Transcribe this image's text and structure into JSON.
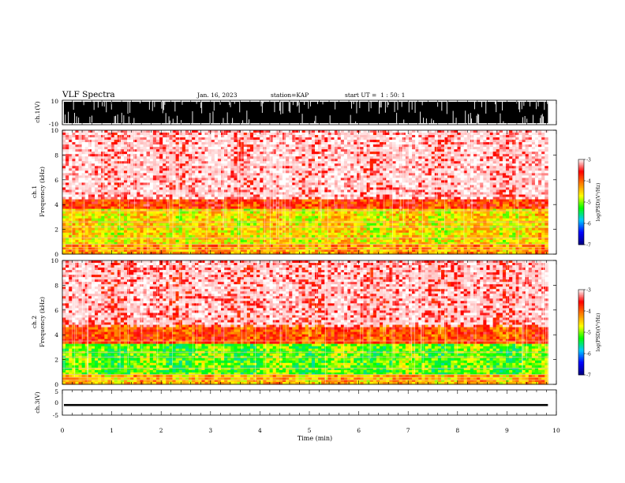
{
  "header": {
    "title": "VLF Spectra",
    "date": "Jan. 16, 2023",
    "station": "station=KAP",
    "start": "start UT =  1 : 50: 1"
  },
  "chart_data": [
    {
      "type": "line",
      "panel": "ch1-waveform",
      "ylabel": "ch.1(V)",
      "yticks": [
        "10",
        "-10"
      ],
      "ylim": [
        -10,
        10
      ],
      "xlim": [
        0,
        9.83
      ],
      "description_level": "saturated-noise"
    },
    {
      "type": "heatmap",
      "panel": "ch1-spectrogram",
      "ylabel": "ch.1\nFrequency (kHz)",
      "ylabel_line1": "ch.1",
      "ylabel_line2": "Frequency (kHz)",
      "yticks": [
        "0",
        "2",
        "4",
        "6",
        "8",
        "10"
      ],
      "ylim": [
        0,
        10
      ],
      "xlim": [
        0,
        9.83
      ],
      "bands_khz": [
        {
          "from": 0.0,
          "to": 0.8,
          "level": -4.3
        },
        {
          "from": 0.8,
          "to": 3.6,
          "level": -4.6
        },
        {
          "from": 3.6,
          "to": 4.5,
          "level": -3.8
        },
        {
          "from": 4.5,
          "to": 10.0,
          "level": -3.2
        }
      ]
    },
    {
      "type": "heatmap",
      "panel": "ch2-spectrogram",
      "ylabel_line1": "ch.2",
      "ylabel_line2": "Frequency (kHz)",
      "yticks": [
        "0",
        "2",
        "4",
        "6",
        "8",
        "10"
      ],
      "ylim": [
        0,
        10
      ],
      "xlim": [
        0,
        9.83
      ],
      "bands_khz": [
        {
          "from": 0.0,
          "to": 0.7,
          "level": -4.4
        },
        {
          "from": 0.7,
          "to": 3.3,
          "level": -5.1
        },
        {
          "from": 3.3,
          "to": 4.8,
          "level": -3.9
        },
        {
          "from": 4.8,
          "to": 10.0,
          "level": -3.3
        }
      ]
    },
    {
      "type": "line",
      "panel": "ch3-waveform",
      "ylabel": "ch.3(V)",
      "yticks": [
        "5",
        "0",
        "-5"
      ],
      "ylim": [
        -5,
        5
      ],
      "xlim": [
        0,
        9.83
      ],
      "band_v": [
        -1.4,
        -0.6
      ]
    }
  ],
  "xaxis": {
    "label": "Time (min)",
    "ticks": [
      "0",
      "1",
      "2",
      "3",
      "4",
      "5",
      "6",
      "7",
      "8",
      "9",
      "10"
    ],
    "xlim": [
      0,
      10
    ]
  },
  "colorbar": {
    "label": "log(PSD)(V²/Hz)",
    "ticks": [
      "-3",
      "-4",
      "-5",
      "-6",
      "-7"
    ],
    "range": [
      -7,
      -3
    ],
    "colors": [
      "#000080",
      "#0000ff",
      "#00c8ff",
      "#00ff00",
      "#ffff00",
      "#ff8000",
      "#ff0000",
      "#ffffff"
    ]
  }
}
